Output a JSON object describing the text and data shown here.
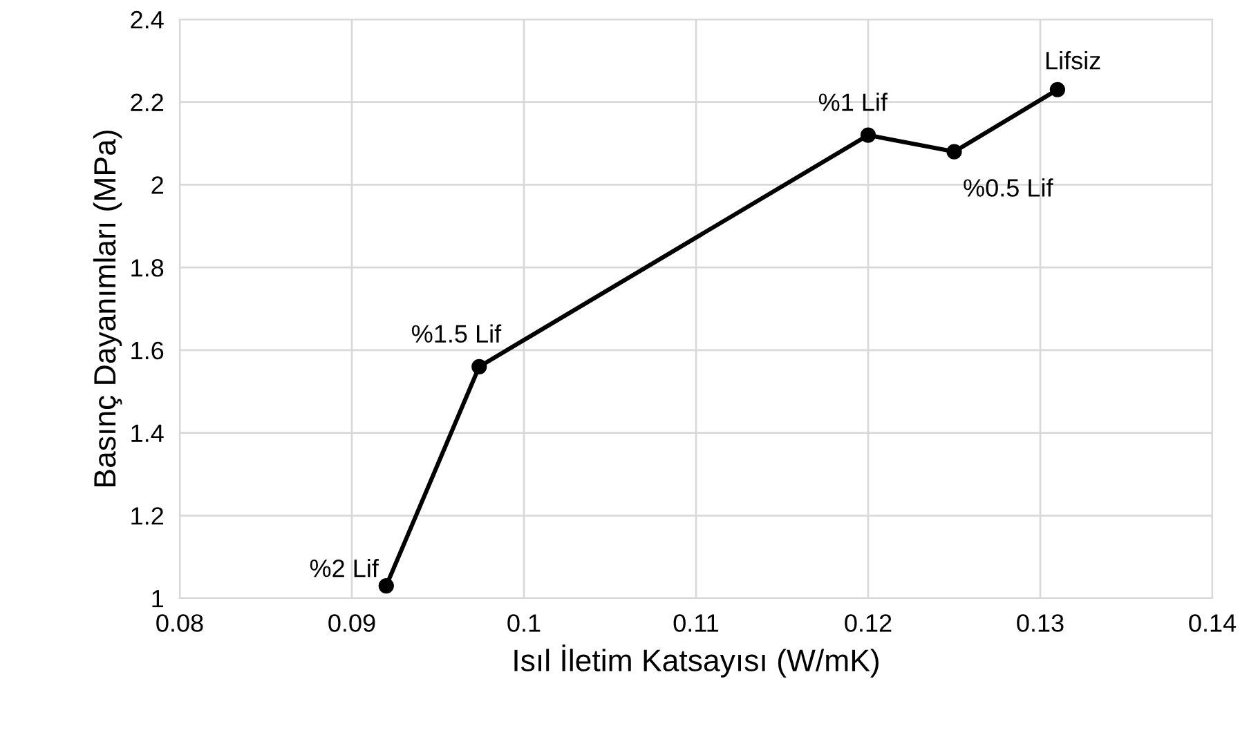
{
  "chart_data": {
    "type": "line",
    "xlabel": "Isıl İletim Katsayısı (W/mK)",
    "ylabel": "Basınç Dayanımları (MPa)",
    "x": [
      0.092,
      0.0974,
      0.12,
      0.125,
      0.131
    ],
    "series": [
      {
        "color": "#000000",
        "values": [
          1.03,
          1.56,
          2.12,
          2.08,
          2.23
        ]
      }
    ],
    "xlim": [
      0.08,
      0.14
    ],
    "xticks": [
      0.08,
      0.09,
      0.1,
      0.11,
      0.12,
      0.13,
      0.14
    ],
    "ylim": [
      1,
      2.4
    ],
    "yticks": [
      1,
      1.2,
      1.4,
      1.6,
      1.8,
      2,
      2.2,
      2.4
    ],
    "grid": true,
    "marker": "circle",
    "line_style": "solid",
    "annotations": [
      {
        "text": "%2 Lif",
        "x": 0.092,
        "y": 1.03
      },
      {
        "text": "%1.5 Lif",
        "x": 0.0974,
        "y": 1.56
      },
      {
        "text": "%1 Lif",
        "x": 0.12,
        "y": 2.12
      },
      {
        "text": "%0.5 Lif",
        "x": 0.125,
        "y": 2.08
      },
      {
        "text": "Lifsiz",
        "x": 0.131,
        "y": 2.23
      }
    ]
  }
}
